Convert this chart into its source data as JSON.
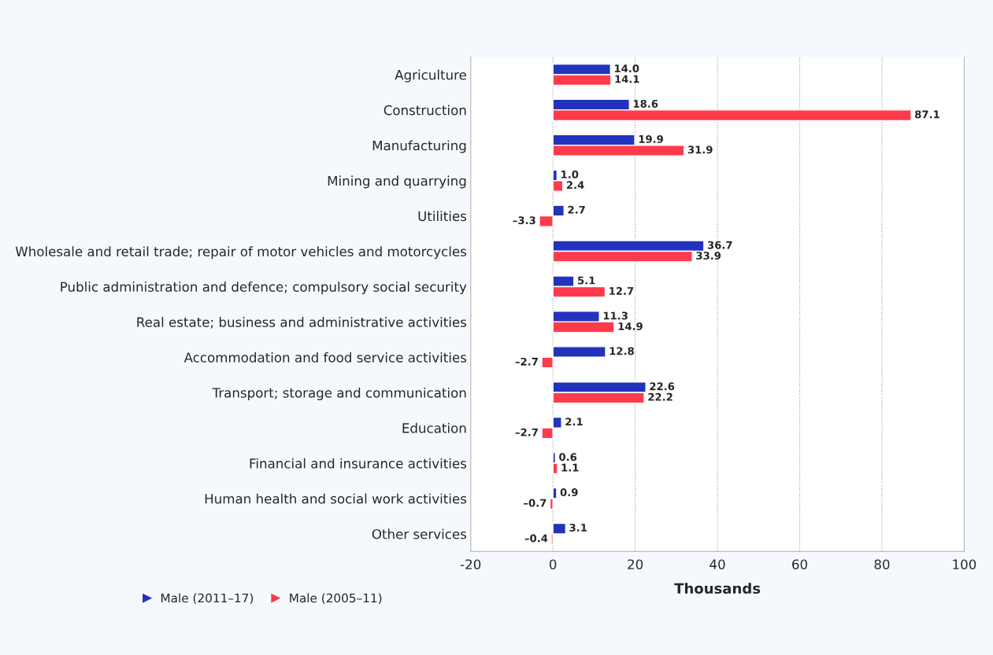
{
  "chart_data": {
    "type": "bar",
    "orientation": "horizontal",
    "xlabel": "Thousands",
    "categories": [
      "Agriculture",
      "Construction",
      "Manufacturing",
      "Mining and quarrying",
      "Utilities",
      "Wholesale and retail trade; repair of motor vehicles and motorcycles",
      "Public administration and defence; compulsory social security",
      "Real estate; business and administrative activities",
      "Accommodation and food service activities",
      "Transport; storage and communication",
      "Education",
      "Financial and insurance activities",
      "Human health and social work activities",
      "Other services"
    ],
    "series": [
      {
        "name": "Male (2011–17)",
        "color": "#2233bb",
        "values": [
          14.0,
          18.6,
          19.9,
          1.0,
          2.7,
          36.7,
          5.1,
          11.3,
          12.8,
          22.6,
          2.1,
          0.6,
          0.9,
          3.1
        ],
        "value_labels": [
          "14.0",
          "18.6",
          "19.9",
          "1.0",
          "2.7",
          "36.7",
          "5.1",
          "11.3",
          "12.8",
          "22.6",
          "2.1",
          "0.6",
          "0.9",
          "3.1"
        ]
      },
      {
        "name": "Male (2005–11)",
        "color": "#fe3b4c",
        "values": [
          14.1,
          87.1,
          31.9,
          2.4,
          -3.3,
          33.9,
          12.7,
          14.9,
          -2.7,
          22.2,
          -2.7,
          1.1,
          -0.7,
          -0.4
        ],
        "value_labels": [
          "14.1",
          "87.1",
          "31.9",
          "2.4",
          "–3.3",
          "33.9",
          "12.7",
          "14.9",
          "–2.7",
          "22.2",
          "–2.7",
          "1.1",
          "–0.7",
          "–0.4"
        ]
      }
    ],
    "xlim": [
      -20,
      100
    ],
    "xticks": [
      -20,
      0,
      20,
      40,
      60,
      80,
      100
    ],
    "grid": "x",
    "legend": "bottom left",
    "marker": "triangle"
  }
}
